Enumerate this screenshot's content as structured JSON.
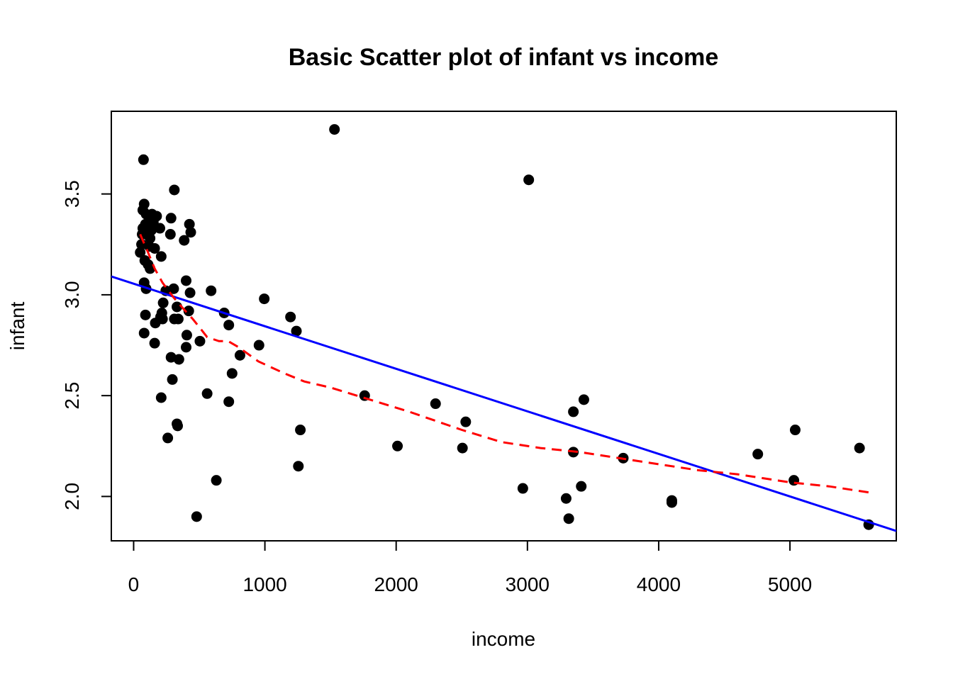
{
  "chart_data": {
    "type": "scatter",
    "title": "Basic Scatter plot of infant vs income",
    "xlabel": "income",
    "ylabel": "infant",
    "xlim": [
      -170,
      5810
    ],
    "ylim": [
      1.78,
      3.91
    ],
    "xticks": [
      0,
      1000,
      2000,
      3000,
      4000,
      5000
    ],
    "xtick_labels": [
      "0",
      "1000",
      "2000",
      "3000",
      "4000",
      "5000"
    ],
    "yticks": [
      2.0,
      2.5,
      3.0,
      3.5
    ],
    "ytick_labels": [
      "2.0",
      "2.5",
      "3.0",
      "3.5"
    ],
    "grid": false,
    "colors": {
      "points": "#000000",
      "fit_line": "#0000ff",
      "smooth_line": "#ff0000"
    },
    "points": [
      {
        "x": 75,
        "y": 3.67
      },
      {
        "x": 80,
        "y": 3.45
      },
      {
        "x": 70,
        "y": 3.42
      },
      {
        "x": 95,
        "y": 3.4
      },
      {
        "x": 140,
        "y": 3.4
      },
      {
        "x": 175,
        "y": 3.39
      },
      {
        "x": 125,
        "y": 3.37
      },
      {
        "x": 150,
        "y": 3.36
      },
      {
        "x": 90,
        "y": 3.35
      },
      {
        "x": 70,
        "y": 3.33
      },
      {
        "x": 110,
        "y": 3.33
      },
      {
        "x": 200,
        "y": 3.33
      },
      {
        "x": 135,
        "y": 3.32
      },
      {
        "x": 65,
        "y": 3.3
      },
      {
        "x": 100,
        "y": 3.3
      },
      {
        "x": 125,
        "y": 3.28
      },
      {
        "x": 60,
        "y": 3.25
      },
      {
        "x": 120,
        "y": 3.24
      },
      {
        "x": 160,
        "y": 3.23
      },
      {
        "x": 50,
        "y": 3.21
      },
      {
        "x": 210,
        "y": 3.19
      },
      {
        "x": 85,
        "y": 3.17
      },
      {
        "x": 110,
        "y": 3.15
      },
      {
        "x": 125,
        "y": 3.13
      },
      {
        "x": 80,
        "y": 3.06
      },
      {
        "x": 95,
        "y": 3.03
      },
      {
        "x": 310,
        "y": 3.52
      },
      {
        "x": 285,
        "y": 3.38
      },
      {
        "x": 425,
        "y": 3.35
      },
      {
        "x": 435,
        "y": 3.31
      },
      {
        "x": 280,
        "y": 3.3
      },
      {
        "x": 385,
        "y": 3.27
      },
      {
        "x": 400,
        "y": 3.07
      },
      {
        "x": 305,
        "y": 3.03
      },
      {
        "x": 245,
        "y": 3.02
      },
      {
        "x": 430,
        "y": 3.01
      },
      {
        "x": 225,
        "y": 2.96
      },
      {
        "x": 330,
        "y": 2.94
      },
      {
        "x": 420,
        "y": 2.92
      },
      {
        "x": 215,
        "y": 2.91
      },
      {
        "x": 90,
        "y": 2.9
      },
      {
        "x": 205,
        "y": 2.89
      },
      {
        "x": 310,
        "y": 2.88
      },
      {
        "x": 340,
        "y": 2.88
      },
      {
        "x": 220,
        "y": 2.88
      },
      {
        "x": 165,
        "y": 2.86
      },
      {
        "x": 80,
        "y": 2.81
      },
      {
        "x": 405,
        "y": 2.8
      },
      {
        "x": 505,
        "y": 2.77
      },
      {
        "x": 160,
        "y": 2.76
      },
      {
        "x": 400,
        "y": 2.74
      },
      {
        "x": 285,
        "y": 2.69
      },
      {
        "x": 345,
        "y": 2.68
      },
      {
        "x": 295,
        "y": 2.58
      },
      {
        "x": 560,
        "y": 2.51
      },
      {
        "x": 210,
        "y": 2.49
      },
      {
        "x": 330,
        "y": 2.36
      },
      {
        "x": 335,
        "y": 2.35
      },
      {
        "x": 260,
        "y": 2.29
      },
      {
        "x": 630,
        "y": 2.08
      },
      {
        "x": 480,
        "y": 1.9
      },
      {
        "x": 590,
        "y": 3.02
      },
      {
        "x": 690,
        "y": 2.91
      },
      {
        "x": 725,
        "y": 2.85
      },
      {
        "x": 810,
        "y": 2.7
      },
      {
        "x": 750,
        "y": 2.61
      },
      {
        "x": 725,
        "y": 2.47
      },
      {
        "x": 995,
        "y": 2.98
      },
      {
        "x": 955,
        "y": 2.75
      },
      {
        "x": 1195,
        "y": 2.89
      },
      {
        "x": 1240,
        "y": 2.82
      },
      {
        "x": 1270,
        "y": 2.33
      },
      {
        "x": 1255,
        "y": 2.15
      },
      {
        "x": 1530,
        "y": 3.82
      },
      {
        "x": 1760,
        "y": 2.5
      },
      {
        "x": 2010,
        "y": 2.25
      },
      {
        "x": 2300,
        "y": 2.46
      },
      {
        "x": 2530,
        "y": 2.37
      },
      {
        "x": 2505,
        "y": 2.24
      },
      {
        "x": 3010,
        "y": 3.57
      },
      {
        "x": 2965,
        "y": 2.04
      },
      {
        "x": 3295,
        "y": 1.99
      },
      {
        "x": 3315,
        "y": 1.89
      },
      {
        "x": 3350,
        "y": 2.42
      },
      {
        "x": 3350,
        "y": 2.22
      },
      {
        "x": 3430,
        "y": 2.48
      },
      {
        "x": 3410,
        "y": 2.05
      },
      {
        "x": 3730,
        "y": 2.19
      },
      {
        "x": 4100,
        "y": 1.98
      },
      {
        "x": 4100,
        "y": 1.97
      },
      {
        "x": 4755,
        "y": 2.21
      },
      {
        "x": 5040,
        "y": 2.33
      },
      {
        "x": 5030,
        "y": 2.08
      },
      {
        "x": 5530,
        "y": 2.24
      },
      {
        "x": 5600,
        "y": 1.86
      }
    ],
    "fit_line": {
      "intercept": 3.055,
      "slope": -0.000211
    },
    "smooth_line": [
      [
        50,
        3.3
      ],
      [
        110,
        3.21
      ],
      [
        160,
        3.13
      ],
      [
        220,
        3.06
      ],
      [
        300,
        2.99
      ],
      [
        380,
        2.93
      ],
      [
        450,
        2.88
      ],
      [
        500,
        2.84
      ],
      [
        560,
        2.79
      ],
      [
        650,
        2.77
      ],
      [
        720,
        2.77
      ],
      [
        800,
        2.74
      ],
      [
        950,
        2.67
      ],
      [
        1150,
        2.61
      ],
      [
        1300,
        2.57
      ],
      [
        1500,
        2.54
      ],
      [
        1800,
        2.48
      ],
      [
        2100,
        2.42
      ],
      [
        2500,
        2.33
      ],
      [
        2800,
        2.27
      ],
      [
        3100,
        2.24
      ],
      [
        3400,
        2.22
      ],
      [
        3700,
        2.19
      ],
      [
        4000,
        2.16
      ],
      [
        4300,
        2.13
      ],
      [
        4600,
        2.11
      ],
      [
        5000,
        2.07
      ],
      [
        5300,
        2.05
      ],
      [
        5600,
        2.02
      ]
    ]
  }
}
